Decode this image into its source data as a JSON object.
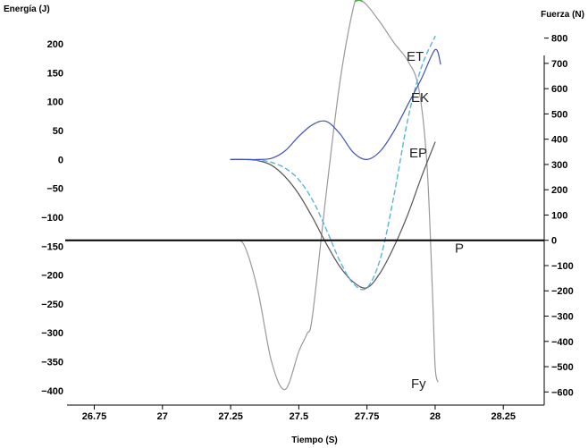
{
  "chart_data": {
    "type": "line",
    "title": "",
    "xlabel": "Tiempo (S)",
    "ylabel": "Energía (J)",
    "ylabel_right": "Fuerza (N)",
    "xlim": [
      26.65,
      28.4
    ],
    "ylim": [
      -425,
      245
    ],
    "ylim_right": [
      -652,
      880
    ],
    "x_ticks": [
      {
        "value": 26.75,
        "label": "26.75"
      },
      {
        "value": 27,
        "label": "27"
      },
      {
        "value": 27.25,
        "label": "27.25"
      },
      {
        "value": 27.5,
        "label": "27.5"
      },
      {
        "value": 27.75,
        "label": "27.75"
      },
      {
        "value": 28,
        "label": "28"
      },
      {
        "value": 28.25,
        "label": "28.25"
      }
    ],
    "y_ticks": [
      {
        "value": 200,
        "label": "200"
      },
      {
        "value": 150,
        "label": "150"
      },
      {
        "value": 100,
        "label": "100"
      },
      {
        "value": 50,
        "label": "50"
      },
      {
        "value": 0,
        "label": "0"
      },
      {
        "value": -50,
        "label": "−50"
      },
      {
        "value": -100,
        "label": "−100"
      },
      {
        "value": -150,
        "label": "−150"
      },
      {
        "value": -200,
        "label": "−200"
      },
      {
        "value": -250,
        "label": "−250"
      },
      {
        "value": -300,
        "label": "−300"
      },
      {
        "value": -350,
        "label": "−350"
      },
      {
        "value": -400,
        "label": "−400"
      }
    ],
    "y_ticks_right": [
      {
        "value": 800,
        "label": "800"
      },
      {
        "value": 700,
        "label": "700"
      },
      {
        "value": 600,
        "label": "600"
      },
      {
        "value": 500,
        "label": "500"
      },
      {
        "value": 400,
        "label": "400"
      },
      {
        "value": 300,
        "label": "300"
      },
      {
        "value": 200,
        "label": "200"
      },
      {
        "value": 100,
        "label": "100"
      },
      {
        "value": 0,
        "label": "0"
      },
      {
        "value": -100,
        "label": "−100"
      },
      {
        "value": -200,
        "label": "−200"
      },
      {
        "value": -300,
        "label": "−300"
      },
      {
        "value": -400,
        "label": "−400"
      },
      {
        "value": -500,
        "label": "−500"
      },
      {
        "value": -600,
        "label": "−600"
      }
    ],
    "grid": false,
    "legend": "inline labels at right end of each curve",
    "reference_line": {
      "name": "P",
      "label": "P",
      "axis": "right",
      "value": 0,
      "color": "#000000"
    },
    "series": [
      {
        "name": "ET",
        "label": "ET",
        "axis": "left",
        "color": "#5ab4d8",
        "dash": true,
        "x": [
          27.25,
          27.3,
          27.35,
          27.4,
          27.45,
          27.5,
          27.55,
          27.6,
          27.65,
          27.7,
          27.75,
          27.8,
          27.85,
          27.9,
          27.95,
          28.0
        ],
        "y": [
          0,
          0,
          -1,
          -5,
          -15,
          -35,
          -70,
          -120,
          -175,
          -215,
          -222,
          -170,
          -60,
          70,
          160,
          213
        ]
      },
      {
        "name": "EK",
        "label": "EK",
        "axis": "left",
        "color": "#3f4fb8",
        "dash": false,
        "x": [
          27.25,
          27.3,
          27.35,
          27.4,
          27.45,
          27.5,
          27.55,
          27.6,
          27.65,
          27.7,
          27.75,
          27.8,
          27.85,
          27.9,
          27.95,
          28.0,
          28.02
        ],
        "y": [
          0,
          0,
          0,
          2,
          15,
          40,
          60,
          66,
          45,
          12,
          0,
          15,
          50,
          95,
          140,
          190,
          165
        ]
      },
      {
        "name": "EP",
        "label": "EP",
        "axis": "left",
        "color": "#555555",
        "dash": false,
        "x": [
          27.25,
          27.3,
          27.35,
          27.4,
          27.45,
          27.5,
          27.55,
          27.6,
          27.65,
          27.7,
          27.75,
          27.8,
          27.85,
          27.9,
          27.95,
          28.0
        ],
        "y": [
          0,
          0,
          -2,
          -10,
          -30,
          -60,
          -100,
          -145,
          -185,
          -212,
          -222,
          -195,
          -150,
          -95,
          -30,
          30
        ]
      },
      {
        "name": "Fy",
        "label": "Fy",
        "axis": "right",
        "color": "#999999",
        "dash": false,
        "x": [
          27.26,
          27.3,
          27.35,
          27.4,
          27.45,
          27.5,
          27.53,
          27.55,
          27.6,
          27.65,
          27.7,
          27.72,
          27.75,
          27.8,
          27.85,
          27.9,
          27.94,
          27.97,
          27.99,
          28.0,
          28.01
        ],
        "y": [
          0,
          -20,
          -200,
          -480,
          -590,
          -440,
          -370,
          -300,
          180,
          620,
          920,
          950,
          930,
          860,
          780,
          710,
          600,
          300,
          -200,
          -500,
          -560
        ]
      }
    ]
  }
}
